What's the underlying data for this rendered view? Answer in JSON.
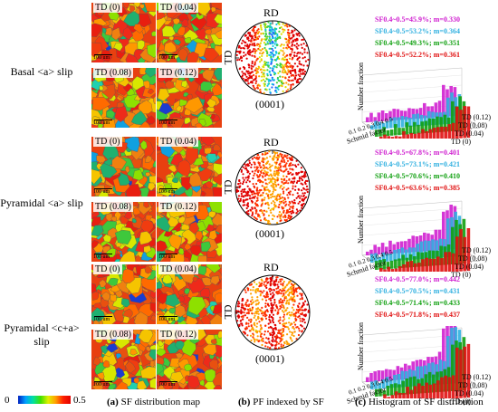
{
  "row_labels": {
    "basal": "Basal <a> slip",
    "pyramidal_a_line1": "Pyramidal <a> slip",
    "pyramidal_ca_line1": "Pyramidal <c+a>",
    "pyramidal_ca_line2": "slip"
  },
  "td_labels": [
    "TD (0)",
    "TD (0.04)",
    "TD (0.08)",
    "TD (0.12)"
  ],
  "scale_bar": "100 um",
  "pole_figure": {
    "top": "RD",
    "left": "TD",
    "bottom": "(0001)"
  },
  "histograms": [
    {
      "lines": [
        {
          "text": "SF0.4~0.5=45.9%; m=0.330",
          "color": "#d020d0"
        },
        {
          "text": "SF0.4~0.5=53.2%; m=0.364",
          "color": "#30b0e0"
        },
        {
          "text": "SF0.4~0.5=49.3%; m=0.351",
          "color": "#10a010"
        },
        {
          "text": "SF0.4~0.5=52.2%; m=0.361",
          "color": "#e01010"
        }
      ]
    },
    {
      "lines": [
        {
          "text": "SF0.4~0.5=67.8%; m=0.401",
          "color": "#d020d0"
        },
        {
          "text": "SF0.4~0.5=73.1%; m=0.421",
          "color": "#30b0e0"
        },
        {
          "text": "SF0.4~0.5=70.6%; m=0.410",
          "color": "#10a010"
        },
        {
          "text": "SF0.4~0.5=63.6%; m=0.385",
          "color": "#e01010"
        }
      ]
    },
    {
      "lines": [
        {
          "text": "SF0.4~0.5=77.0%; m=0.442",
          "color": "#d020d0"
        },
        {
          "text": "SF0.4~0.5=70.5%; m=0.431",
          "color": "#30b0e0"
        },
        {
          "text": "SF0.4~0.5=71.4%; m=0.433",
          "color": "#10a010"
        },
        {
          "text": "SF0.4~0.5=71.8%; m=0.437",
          "color": "#e01010"
        }
      ]
    }
  ],
  "hist_axes": {
    "ylabel": "Number fraction",
    "xlabel": "Schmid factor",
    "xticks": [
      "0.1",
      "0.2",
      "0.3",
      "0.4",
      "0.5"
    ],
    "series_labels": [
      "TD (0.12)",
      "TD (0.08)",
      "TD (0.04)",
      "TD (0)"
    ]
  },
  "colorbar": {
    "min": "0",
    "max": "0.5"
  },
  "captions": {
    "a_letter": "(a)",
    "a_text": " SF distribution map",
    "b_letter": "(b)",
    "b_text": " PF indexed by SF",
    "c_letter": "(c)",
    "c_text": " Histogram of SF distribution"
  }
}
